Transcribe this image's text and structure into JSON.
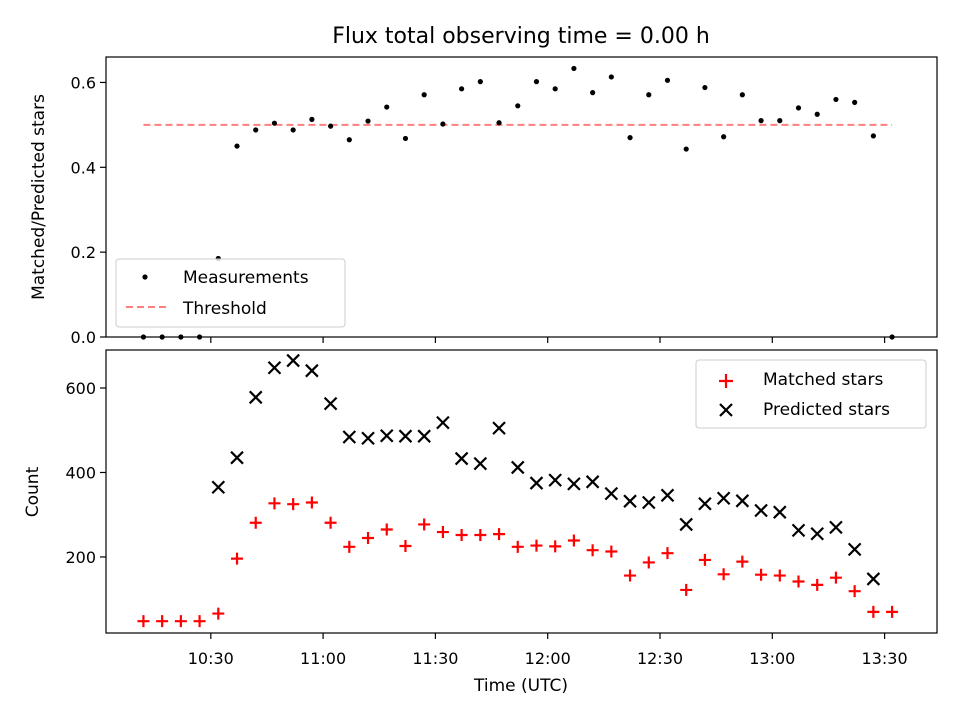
{
  "chart_data": [
    {
      "type": "scatter",
      "title": "Flux total observing time = 0.00 h",
      "ylabel": "Matched/Predicted stars",
      "xlim": [
        "10:02",
        "13:44"
      ],
      "ylim": [
        0,
        0.66
      ],
      "yticks": [
        0.0,
        0.2,
        0.4,
        0.6
      ],
      "ytick_labels": [
        "0.0",
        "0.2",
        "0.4",
        "0.6"
      ],
      "legend_position": "lower-left",
      "series": [
        {
          "name": "Measurements",
          "marker": "dot",
          "color": "#000000",
          "x": [
            "10:12",
            "10:17",
            "10:22",
            "10:27",
            "10:32",
            "10:37",
            "10:42",
            "10:47",
            "10:52",
            "10:57",
            "11:02",
            "11:07",
            "11:12",
            "11:17",
            "11:22",
            "11:27",
            "11:32",
            "11:37",
            "11:42",
            "11:47",
            "11:52",
            "11:57",
            "12:02",
            "12:07",
            "12:12",
            "12:17",
            "12:22",
            "12:27",
            "12:32",
            "12:37",
            "12:42",
            "12:47",
            "12:52",
            "12:57",
            "13:02",
            "13:07",
            "13:12",
            "13:17",
            "13:22",
            "13:27",
            "13:32"
          ],
          "y": [
            0.0,
            0.0,
            0.0,
            0.0,
            0.185,
            0.45,
            0.488,
            0.504,
            0.488,
            0.513,
            0.497,
            0.465,
            0.509,
            0.542,
            0.468,
            0.571,
            0.502,
            0.585,
            0.602,
            0.505,
            0.545,
            0.602,
            0.585,
            0.633,
            0.576,
            0.613,
            0.47,
            0.571,
            0.605,
            0.443,
            0.588,
            0.472,
            0.571,
            0.51,
            0.51,
            0.54,
            0.525,
            0.56,
            0.553,
            0.474,
            0.0
          ]
        },
        {
          "name": "Threshold",
          "style": "dashed",
          "color": "#ff7f7f",
          "x": [
            "10:12",
            "13:32"
          ],
          "y": [
            0.5,
            0.5
          ]
        }
      ]
    },
    {
      "type": "scatter",
      "xlabel": "Time (UTC)",
      "ylabel": "Count",
      "xlim": [
        "10:02",
        "13:44"
      ],
      "ylim": [
        20,
        690
      ],
      "yticks": [
        200,
        400,
        600
      ],
      "ytick_labels": [
        "200",
        "400",
        "600"
      ],
      "xticks": [
        "10:30",
        "11:00",
        "11:30",
        "12:00",
        "12:30",
        "13:00",
        "13:30"
      ],
      "xtick_labels": [
        "10:30",
        "11:00",
        "11:30",
        "12:00",
        "12:30",
        "13:00",
        "13:30"
      ],
      "legend_position": "upper-right",
      "series": [
        {
          "name": "Matched stars",
          "marker": "plus",
          "color": "#ff0000",
          "x": [
            "10:12",
            "10:17",
            "10:22",
            "10:27",
            "10:32",
            "10:37",
            "10:42",
            "10:47",
            "10:52",
            "10:57",
            "11:02",
            "11:07",
            "11:12",
            "11:17",
            "11:22",
            "11:27",
            "11:32",
            "11:37",
            "11:42",
            "11:47",
            "11:52",
            "11:57",
            "12:02",
            "12:07",
            "12:12",
            "12:17",
            "12:22",
            "12:27",
            "12:32",
            "12:37",
            "12:42",
            "12:47",
            "12:52",
            "12:57",
            "13:02",
            "13:07",
            "13:12",
            "13:17",
            "13:22",
            "13:27",
            "13:32"
          ],
          "y": [
            48,
            48,
            48,
            48,
            66,
            196,
            281,
            327,
            325,
            329,
            281,
            224,
            245,
            265,
            226,
            277,
            259,
            252,
            252,
            254,
            224,
            227,
            225,
            239,
            216,
            213,
            156,
            187,
            209,
            122,
            193,
            159,
            189,
            158,
            156,
            142,
            134,
            151,
            119,
            70,
            70
          ]
        },
        {
          "name": "Predicted stars",
          "marker": "x",
          "color": "#000000",
          "x": [
            "10:32",
            "10:37",
            "10:42",
            "10:47",
            "10:52",
            "10:57",
            "11:02",
            "11:07",
            "11:12",
            "11:17",
            "11:22",
            "11:27",
            "11:32",
            "11:37",
            "11:42",
            "11:47",
            "11:52",
            "11:57",
            "12:02",
            "12:07",
            "12:12",
            "12:17",
            "12:22",
            "12:27",
            "12:32",
            "12:37",
            "12:42",
            "12:47",
            "12:52",
            "12:57",
            "13:02",
            "13:07",
            "13:12",
            "13:17",
            "13:22",
            "13:27"
          ],
          "y": [
            365,
            435,
            578,
            648,
            665,
            641,
            563,
            484,
            481,
            487,
            486,
            486,
            518,
            433,
            421,
            505,
            412,
            375,
            382,
            373,
            378,
            350,
            332,
            329,
            346,
            277,
            326,
            339,
            333,
            310,
            306,
            263,
            255,
            270,
            218,
            148
          ]
        }
      ]
    }
  ]
}
